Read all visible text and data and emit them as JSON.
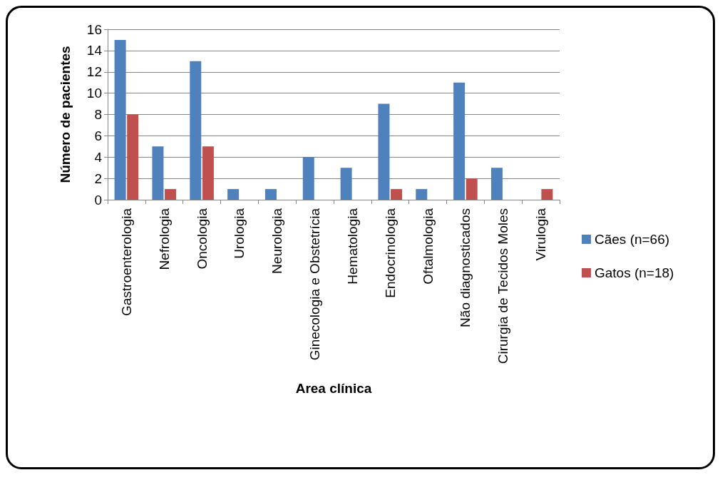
{
  "chart_data": {
    "type": "bar",
    "xlabel": "Area clínica",
    "ylabel": "Número de pacientes",
    "categories": [
      "Gastroenterologia",
      "Nefrologia",
      "Oncologia",
      "Urologia",
      "Neurologia",
      "Ginecologia e Obstetrícia",
      "Hematologia",
      "Endocrinologia",
      "Oftalmologia",
      "Não diagnosticados",
      "Cirurgia de Tecidos Moles",
      "Virulogia"
    ],
    "series": [
      {
        "name": "Cães (n=66)",
        "color": "#4f81bd",
        "values": [
          15,
          5,
          13,
          1,
          1,
          4,
          3,
          9,
          1,
          11,
          3,
          null
        ]
      },
      {
        "name": "Gatos (n=18)",
        "color": "#c0504d",
        "values": [
          8,
          1,
          5,
          null,
          null,
          null,
          null,
          1,
          null,
          2,
          null,
          1
        ]
      }
    ],
    "ylim": [
      0,
      16
    ],
    "yticks": [
      0,
      2,
      4,
      6,
      8,
      10,
      12,
      14,
      16
    ],
    "grid": "y",
    "legend": "right"
  }
}
